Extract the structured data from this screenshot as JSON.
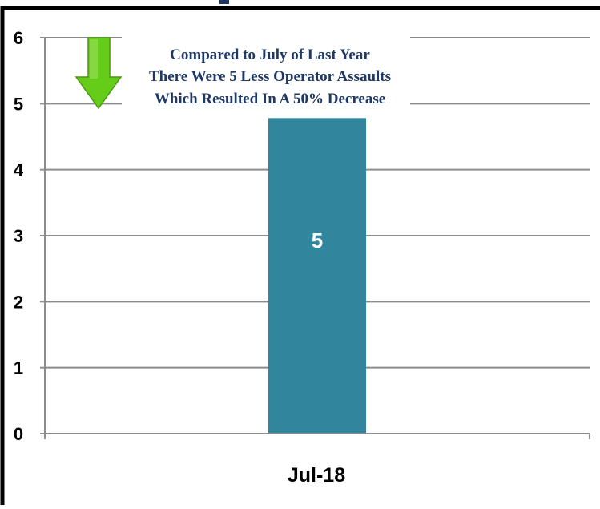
{
  "chart_data": {
    "type": "bar",
    "categories": [
      "Jul-18"
    ],
    "values": [
      5
    ],
    "data_labels": [
      "5"
    ],
    "ylim": [
      0,
      6
    ],
    "yticks": [
      0,
      1,
      2,
      3,
      4,
      5,
      6
    ],
    "grid": true,
    "title": "",
    "xlabel": "",
    "ylabel": "",
    "annotation": [
      "Compared to July of Last Year",
      "There Were 5 Less Operator Assaults",
      "Which Resulted In A 50% Decrease"
    ],
    "arrow_icon": "down-arrow-icon",
    "colors": {
      "bar": "#31859c",
      "gridline": "#8c8c8c",
      "annotation_text": "#1f3864",
      "arrow_fill": "#66cc1a",
      "frame": "#000000"
    }
  }
}
